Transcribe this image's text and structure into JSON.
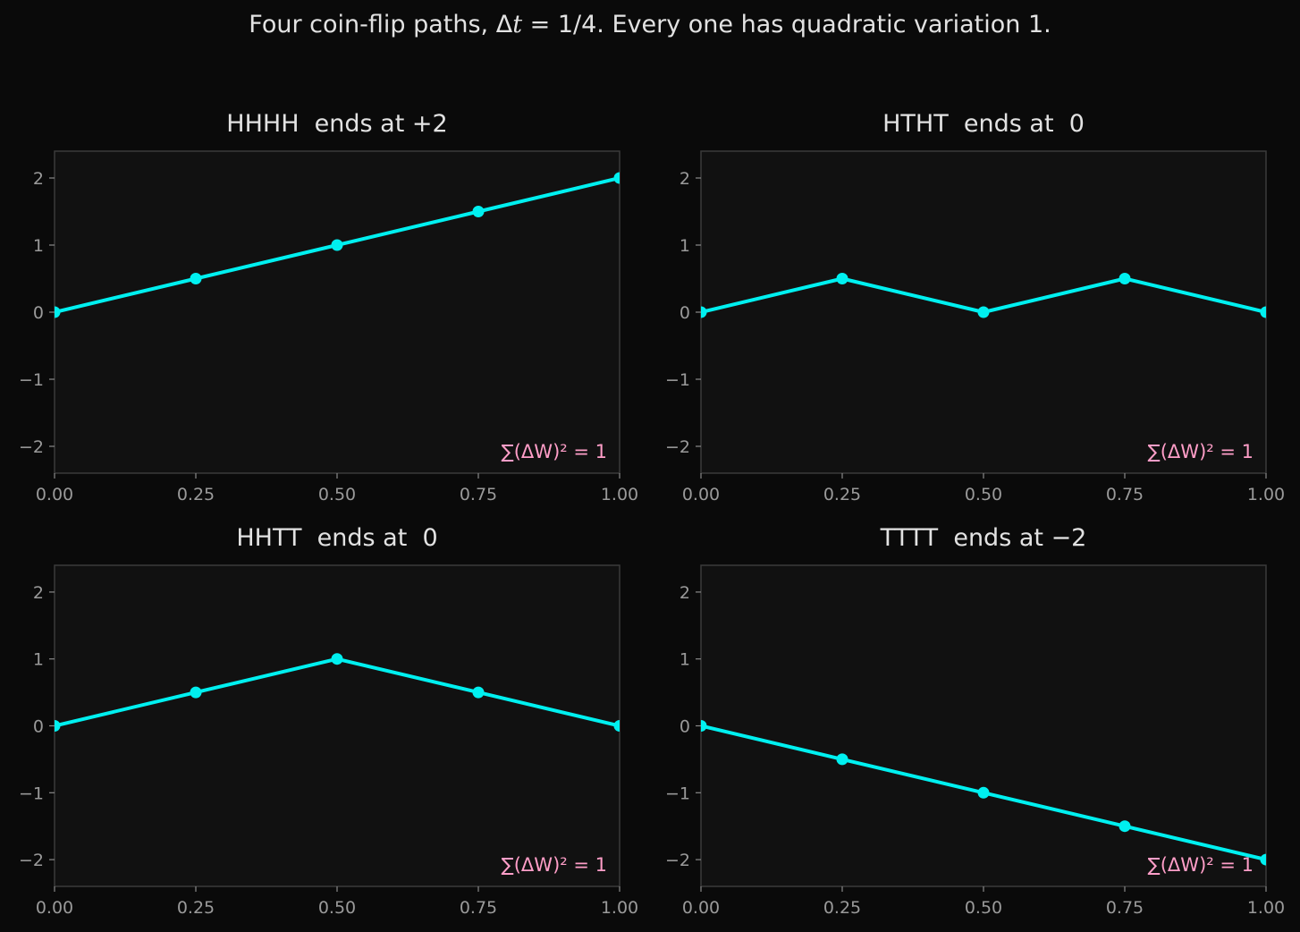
{
  "figure": {
    "title_prefix": "Four coin-flip paths, Δ",
    "title_var": "t",
    "title_suffix": " = 1/4. Every one has quadratic variation 1."
  },
  "colors": {
    "background": "#0a0a0a",
    "axes_background": "#111111",
    "spine": "#3a3a3a",
    "line": "#00f0f0",
    "annotation": "#ff9ec8",
    "text": "#e2e2e2",
    "tick_text": "#9a9a9a"
  },
  "chart_data": [
    {
      "type": "line",
      "title": "HHHH  ends at +2",
      "x": [
        0,
        0.25,
        0.5,
        0.75,
        1.0
      ],
      "y": [
        0,
        0.5,
        1.0,
        1.5,
        2.0
      ],
      "xlim": [
        0,
        1
      ],
      "ylim": [
        -2.4,
        2.4
      ],
      "xticks": [
        "0.00",
        "0.25",
        "0.50",
        "0.75",
        "1.00"
      ],
      "yticks": [
        {
          "value": -2,
          "label": "−2"
        },
        {
          "value": -1,
          "label": "−1"
        },
        {
          "value": 0,
          "label": "0"
        },
        {
          "value": 1,
          "label": "1"
        },
        {
          "value": 2,
          "label": "2"
        }
      ],
      "annotation": "∑(ΔW)² = 1",
      "grid": false,
      "markers": true
    },
    {
      "type": "line",
      "title": "HTHT  ends at  0",
      "x": [
        0,
        0.25,
        0.5,
        0.75,
        1.0
      ],
      "y": [
        0,
        0.5,
        0,
        0.5,
        0
      ],
      "xlim": [
        0,
        1
      ],
      "ylim": [
        -2.4,
        2.4
      ],
      "xticks": [
        "0.00",
        "0.25",
        "0.50",
        "0.75",
        "1.00"
      ],
      "yticks": [
        {
          "value": -2,
          "label": "−2"
        },
        {
          "value": -1,
          "label": "−1"
        },
        {
          "value": 0,
          "label": "0"
        },
        {
          "value": 1,
          "label": "1"
        },
        {
          "value": 2,
          "label": "2"
        }
      ],
      "annotation": "∑(ΔW)² = 1",
      "grid": false,
      "markers": true
    },
    {
      "type": "line",
      "title": "HHTT  ends at  0",
      "x": [
        0,
        0.25,
        0.5,
        0.75,
        1.0
      ],
      "y": [
        0,
        0.5,
        1.0,
        0.5,
        0
      ],
      "xlim": [
        0,
        1
      ],
      "ylim": [
        -2.4,
        2.4
      ],
      "xticks": [
        "0.00",
        "0.25",
        "0.50",
        "0.75",
        "1.00"
      ],
      "yticks": [
        {
          "value": -2,
          "label": "−2"
        },
        {
          "value": -1,
          "label": "−1"
        },
        {
          "value": 0,
          "label": "0"
        },
        {
          "value": 1,
          "label": "1"
        },
        {
          "value": 2,
          "label": "2"
        }
      ],
      "annotation": "∑(ΔW)² = 1",
      "grid": false,
      "markers": true
    },
    {
      "type": "line",
      "title": "TTTT  ends at −2",
      "x": [
        0,
        0.25,
        0.5,
        0.75,
        1.0
      ],
      "y": [
        0,
        -0.5,
        -1.0,
        -1.5,
        -2.0
      ],
      "xlim": [
        0,
        1
      ],
      "ylim": [
        -2.4,
        2.4
      ],
      "xticks": [
        "0.00",
        "0.25",
        "0.50",
        "0.75",
        "1.00"
      ],
      "yticks": [
        {
          "value": -2,
          "label": "−2"
        },
        {
          "value": -1,
          "label": "−1"
        },
        {
          "value": 0,
          "label": "0"
        },
        {
          "value": 1,
          "label": "1"
        },
        {
          "value": 2,
          "label": "2"
        }
      ],
      "annotation": "∑(ΔW)² = 1",
      "grid": false,
      "markers": true
    }
  ]
}
